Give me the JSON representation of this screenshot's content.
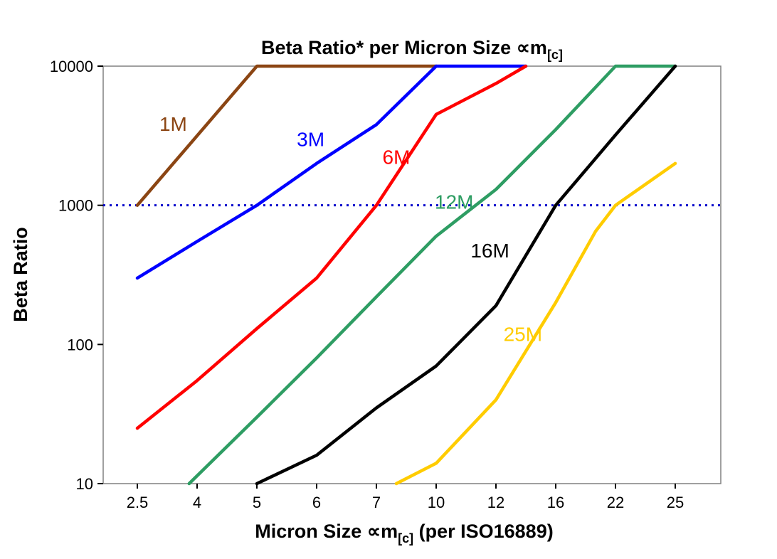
{
  "title": {
    "main": "Beta Ratio* per Micron Size ∝m",
    "sub": "[c]"
  },
  "y_axis": {
    "label": "Beta Ratio"
  },
  "x_axis": {
    "label_main": "Micron Size ∝m",
    "label_sub": "[c]",
    "label_suffix": " (per ISO16889)"
  },
  "chart_data": {
    "type": "line",
    "title": "Beta Ratio* per Micron Size ∝m[c]",
    "xlabel": "Micron Size ∝m[c] (per ISO16889)",
    "ylabel": "Beta Ratio",
    "y_scale": "log",
    "ylim": [
      10,
      10000
    ],
    "y_ticks": [
      10,
      100,
      1000,
      10000
    ],
    "y_tick_labels": [
      "10",
      "100",
      "1000",
      "10000"
    ],
    "x_categories": [
      "2.5",
      "4",
      "5",
      "6",
      "7",
      "10",
      "12",
      "16",
      "22",
      "25"
    ],
    "x_values": [
      2.5,
      4,
      5,
      6,
      7,
      10,
      12,
      16,
      22,
      25
    ],
    "grid": false,
    "legend_position": "inline-labels",
    "reference_line": {
      "y": 1000,
      "color": "#0000CC",
      "style": "dotted"
    },
    "series": [
      {
        "name": "1M",
        "color": "#8B4513",
        "label_pos": [
          3.4,
          3800
        ],
        "points": [
          [
            2.5,
            1000
          ],
          [
            5,
            10000
          ],
          [
            10,
            10000
          ]
        ]
      },
      {
        "name": "3M",
        "color": "#0000FF",
        "label_pos": [
          5.9,
          2950
        ],
        "points": [
          [
            2.5,
            300
          ],
          [
            4,
            550
          ],
          [
            5,
            1000
          ],
          [
            6,
            2000
          ],
          [
            7,
            3800
          ],
          [
            10,
            10000
          ],
          [
            14,
            10000
          ]
        ]
      },
      {
        "name": "6M",
        "color": "#FF0000",
        "label_pos": [
          8.0,
          2200
        ],
        "points": [
          [
            2.5,
            25
          ],
          [
            4,
            55
          ],
          [
            5,
            130
          ],
          [
            6,
            300
          ],
          [
            7,
            1000
          ],
          [
            10,
            4500
          ],
          [
            12,
            7500
          ],
          [
            14,
            10000
          ]
        ]
      },
      {
        "name": "12M",
        "color": "#2E9D63",
        "label_pos": [
          10.6,
          1050
        ],
        "points": [
          [
            3.8,
            10
          ],
          [
            5,
            30
          ],
          [
            6,
            80
          ],
          [
            7,
            220
          ],
          [
            10,
            600
          ],
          [
            12,
            1300
          ],
          [
            16,
            3500
          ],
          [
            22,
            10000
          ],
          [
            25,
            10000
          ]
        ]
      },
      {
        "name": "16M",
        "color": "#000000",
        "label_pos": [
          11.8,
          470
        ],
        "points": [
          [
            5,
            10
          ],
          [
            6,
            16
          ],
          [
            7,
            35
          ],
          [
            10,
            70
          ],
          [
            12,
            190
          ],
          [
            16,
            1000
          ],
          [
            22,
            3200
          ],
          [
            25,
            10000
          ]
        ]
      },
      {
        "name": "25M",
        "color": "#FFCC00",
        "label_pos": [
          13.8,
          118
        ],
        "points": [
          [
            8,
            10
          ],
          [
            10,
            14
          ],
          [
            12,
            40
          ],
          [
            16,
            200
          ],
          [
            20,
            650
          ],
          [
            22,
            1000
          ],
          [
            25,
            2000
          ]
        ]
      }
    ]
  }
}
